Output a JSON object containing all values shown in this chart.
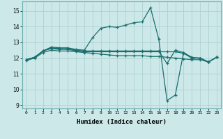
{
  "xlabel": "Humidex (Indice chaleur)",
  "bg_color": "#cce8e8",
  "grid_color": "#aacece",
  "line_color": "#1a6e6e",
  "xlim": [
    -0.5,
    23.5
  ],
  "ylim": [
    8.8,
    15.6
  ],
  "yticks": [
    9,
    10,
    11,
    12,
    13,
    14,
    15
  ],
  "xticks": [
    0,
    1,
    2,
    3,
    4,
    5,
    6,
    7,
    8,
    9,
    10,
    11,
    12,
    13,
    14,
    15,
    16,
    17,
    18,
    19,
    20,
    21,
    22,
    23
  ],
  "lines": [
    {
      "x": [
        0,
        1,
        2,
        3,
        4,
        5,
        6,
        7,
        8,
        9,
        10,
        11,
        12,
        13,
        14,
        15,
        16,
        17,
        18,
        19,
        20,
        21,
        22,
        23
      ],
      "y": [
        11.9,
        12.05,
        12.45,
        12.7,
        12.65,
        12.65,
        12.55,
        12.5,
        13.3,
        13.9,
        14.0,
        13.95,
        14.1,
        14.25,
        14.3,
        15.2,
        13.2,
        9.3,
        9.65,
        12.35,
        12.05,
        12.0,
        11.75,
        12.05
      ]
    },
    {
      "x": [
        0,
        1,
        2,
        3,
        4,
        5,
        6,
        7,
        8,
        9,
        10,
        11,
        12,
        13,
        14,
        15,
        16,
        17,
        18,
        19,
        20,
        21,
        22,
        23
      ],
      "y": [
        11.9,
        12.05,
        12.45,
        12.65,
        12.6,
        12.6,
        12.5,
        12.45,
        12.45,
        12.45,
        12.45,
        12.45,
        12.45,
        12.45,
        12.45,
        12.45,
        12.45,
        11.65,
        12.5,
        12.35,
        12.0,
        12.0,
        11.75,
        12.05
      ]
    },
    {
      "x": [
        0,
        1,
        2,
        3,
        4,
        5,
        6,
        7,
        8,
        9,
        10,
        11,
        12,
        13,
        14,
        15,
        16,
        17,
        18,
        19,
        20,
        21,
        22,
        23
      ],
      "y": [
        11.9,
        12.05,
        12.45,
        12.6,
        12.55,
        12.55,
        12.45,
        12.4,
        12.4,
        12.4,
        12.4,
        12.4,
        12.4,
        12.4,
        12.4,
        12.4,
        12.4,
        12.4,
        12.4,
        12.3,
        12.0,
        12.0,
        11.75,
        12.05
      ]
    },
    {
      "x": [
        0,
        1,
        2,
        3,
        4,
        5,
        6,
        7,
        8,
        9,
        10,
        11,
        12,
        13,
        14,
        15,
        16,
        17,
        18,
        19,
        20,
        21,
        22,
        23
      ],
      "y": [
        11.85,
        12.0,
        12.35,
        12.5,
        12.45,
        12.45,
        12.4,
        12.35,
        12.3,
        12.25,
        12.2,
        12.15,
        12.15,
        12.15,
        12.15,
        12.1,
        12.1,
        12.05,
        12.0,
        11.95,
        11.9,
        11.9,
        11.75,
        12.05
      ]
    }
  ]
}
